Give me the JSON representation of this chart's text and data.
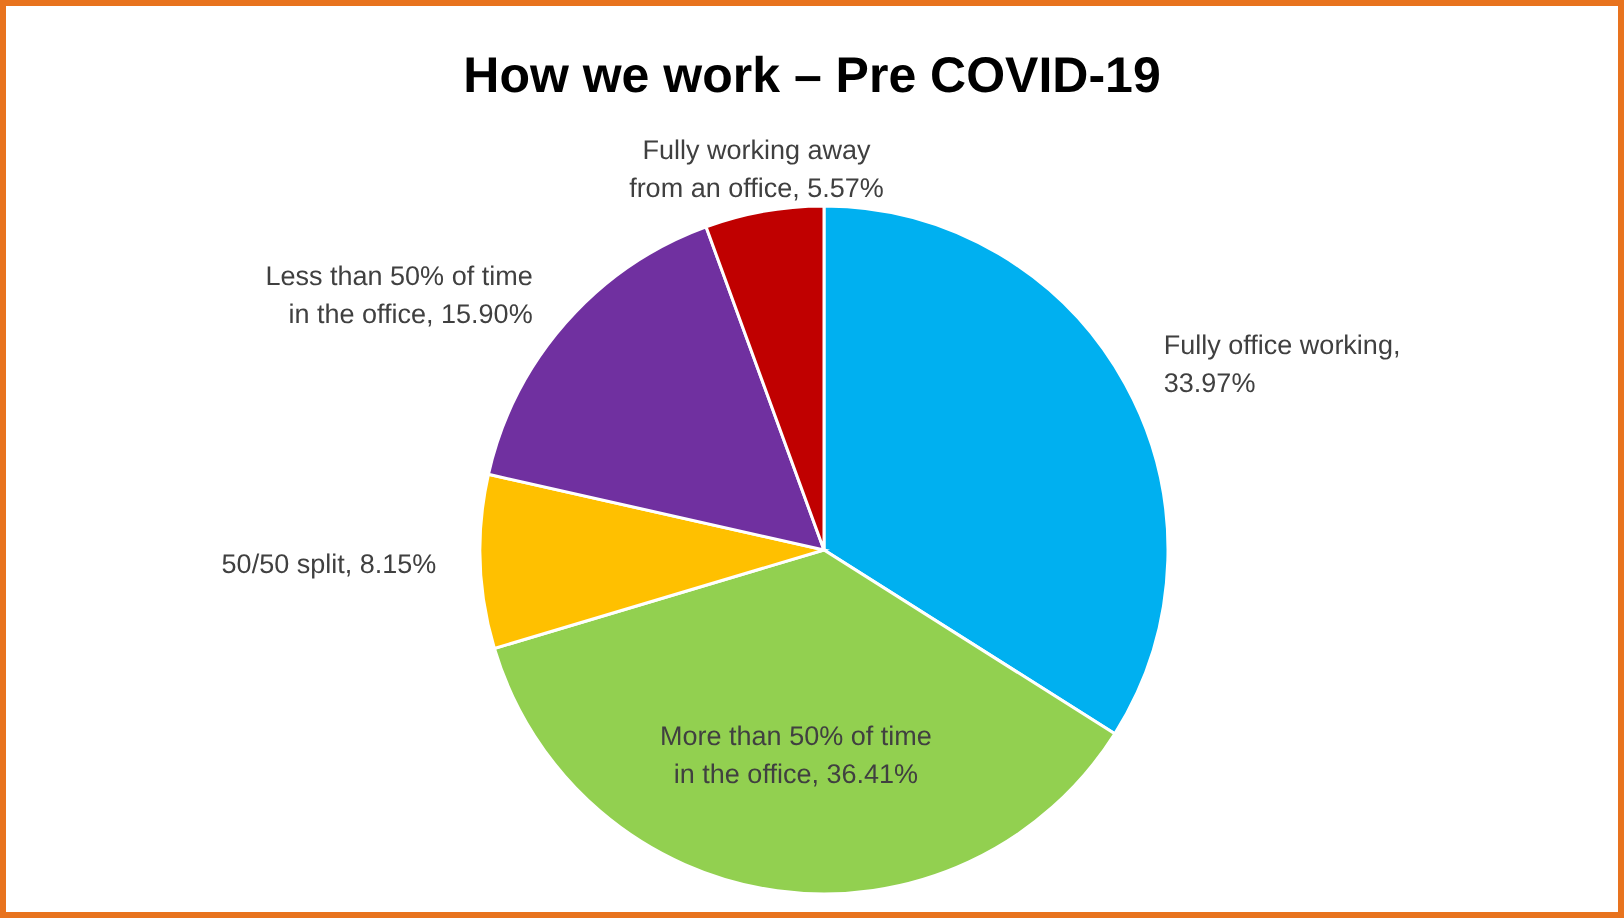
{
  "chart_data": {
    "type": "pie",
    "title": "How we work – Pre COVID-19",
    "categories": [
      "Fully office working, 33.97%",
      "More than 50% of time in the office, 36.41%",
      "50/50 split, 8.15%",
      "Less than 50% of time in the office, 15.90%",
      "Fully working away from an office, 5.57%"
    ],
    "values": [
      33.97,
      36.41,
      8.15,
      15.9,
      5.57
    ],
    "colors": [
      "#00b0f0",
      "#92d050",
      "#ffc000",
      "#7030a0",
      "#c00000"
    ]
  }
}
